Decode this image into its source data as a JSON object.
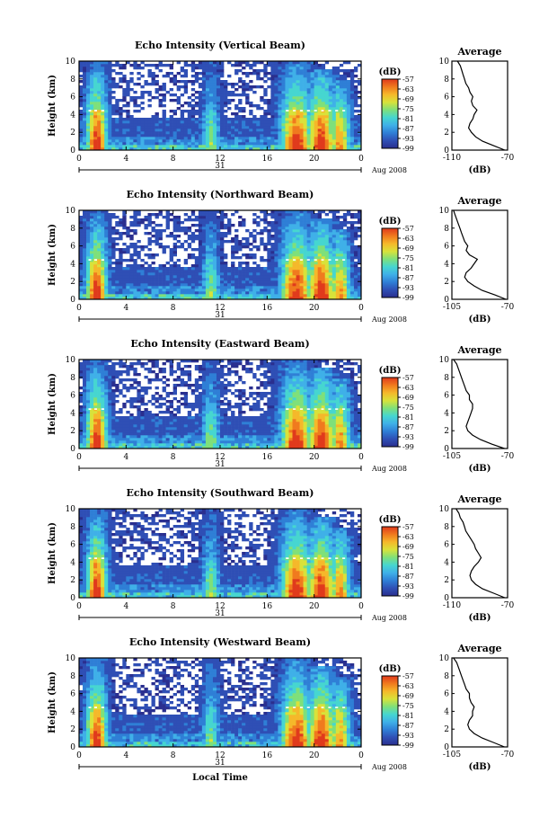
{
  "chart_data": [
    {
      "type": "heatmap",
      "title": "Echo Intensity (Vertical Beam)",
      "ylabel": "Height (km)",
      "xlabel": "",
      "x_ticks": [
        "0",
        "4",
        "8",
        "12",
        "16",
        "20",
        "0"
      ],
      "y_ticks": [
        "0",
        "2",
        "4",
        "6",
        "8",
        "10"
      ],
      "xlim": [
        0,
        24
      ],
      "ylim": [
        0,
        10
      ],
      "day_label": "31",
      "month_label": "Aug 2008",
      "colorbar": {
        "unit": "(dB)",
        "ticks": [
          "-57",
          "-63",
          "-69",
          "-75",
          "-81",
          "-87",
          "-93",
          "-99"
        ],
        "range": [
          -99,
          -57
        ]
      },
      "average": {
        "title": "Average",
        "xlabel": "(dB)",
        "x_ticks": [
          "-110",
          "-70"
        ],
        "xlim": [
          -110,
          -70
        ],
        "y_ticks": [
          "0",
          "2",
          "4",
          "6",
          "8",
          "10"
        ],
        "heights": [
          0,
          0.5,
          1,
          1.5,
          2,
          2.5,
          3,
          3.5,
          4,
          4.5,
          5,
          5.5,
          6,
          6.5,
          7,
          7.5,
          8,
          8.5,
          9,
          9.5,
          10
        ],
        "values": [
          -72,
          -80,
          -88,
          -93,
          -96,
          -98,
          -97,
          -95,
          -94,
          -92,
          -95,
          -96,
          -95,
          -97,
          -98,
          -100,
          -101,
          -102,
          -103,
          -104,
          -106
        ]
      }
    },
    {
      "type": "heatmap",
      "title": "Echo Intensity (Northward Beam)",
      "ylabel": "Height (km)",
      "xlabel": "",
      "x_ticks": [
        "0",
        "4",
        "8",
        "12",
        "16",
        "20",
        "0"
      ],
      "y_ticks": [
        "0",
        "2",
        "4",
        "6",
        "8",
        "10"
      ],
      "xlim": [
        0,
        24
      ],
      "ylim": [
        0,
        10
      ],
      "day_label": "31",
      "month_label": "Aug 2008",
      "colorbar": {
        "unit": "(dB)",
        "ticks": [
          "-57",
          "-63",
          "-69",
          "-75",
          "-81",
          "-87",
          "-93",
          "-99"
        ],
        "range": [
          -99,
          -57
        ]
      },
      "average": {
        "title": "Average",
        "xlabel": "(dB)",
        "x_ticks": [
          "-105",
          "-70"
        ],
        "xlim": [
          -105,
          -70
        ],
        "y_ticks": [
          "0",
          "2",
          "4",
          "6",
          "8",
          "10"
        ],
        "heights": [
          0,
          0.5,
          1,
          1.5,
          2,
          2.5,
          3,
          3.5,
          4,
          4.5,
          5,
          5.5,
          6,
          6.5,
          7,
          7.5,
          8,
          8.5,
          9,
          9.5,
          10
        ],
        "values": [
          -71,
          -78,
          -86,
          -91,
          -95,
          -97,
          -96,
          -93,
          -91,
          -89,
          -94,
          -96,
          -95,
          -97,
          -98,
          -99,
          -100,
          -101,
          -102,
          -103,
          -104
        ]
      }
    },
    {
      "type": "heatmap",
      "title": "Echo Intensity (Eastward Beam)",
      "ylabel": "Height (km)",
      "xlabel": "",
      "x_ticks": [
        "0",
        "4",
        "8",
        "12",
        "16",
        "20",
        "0"
      ],
      "y_ticks": [
        "0",
        "2",
        "4",
        "6",
        "8",
        "10"
      ],
      "xlim": [
        0,
        24
      ],
      "ylim": [
        0,
        10
      ],
      "day_label": "31",
      "month_label": "Aug 2008",
      "colorbar": {
        "unit": "(dB)",
        "ticks": [
          "-57",
          "-63",
          "-69",
          "-75",
          "-81",
          "-87",
          "-93",
          "-99"
        ],
        "range": [
          -99,
          -57
        ]
      },
      "average": {
        "title": "Average",
        "xlabel": "(dB)",
        "x_ticks": [
          "-105",
          "-70"
        ],
        "xlim": [
          -105,
          -70
        ],
        "y_ticks": [
          "0",
          "2",
          "4",
          "6",
          "8",
          "10"
        ],
        "heights": [
          0,
          0.5,
          1,
          1.5,
          2,
          2.5,
          3,
          3.5,
          4,
          4.5,
          5,
          5.5,
          6,
          6.5,
          7,
          7.5,
          8,
          8.5,
          9,
          9.5,
          10
        ],
        "values": [
          -72,
          -80,
          -87,
          -92,
          -95,
          -96,
          -95,
          -94,
          -93,
          -92,
          -92,
          -94,
          -94,
          -96,
          -97,
          -98,
          -99,
          -100,
          -101,
          -102,
          -104
        ]
      }
    },
    {
      "type": "heatmap",
      "title": "Echo Intensity (Southward Beam)",
      "ylabel": "Height (km)",
      "xlabel": "",
      "x_ticks": [
        "0",
        "4",
        "8",
        "12",
        "16",
        "20",
        "0"
      ],
      "y_ticks": [
        "0",
        "2",
        "4",
        "6",
        "8",
        "10"
      ],
      "xlim": [
        0,
        24
      ],
      "ylim": [
        0,
        10
      ],
      "day_label": "31",
      "month_label": "Aug 2008",
      "colorbar": {
        "unit": "(dB)",
        "ticks": [
          "-57",
          "-63",
          "-69",
          "-75",
          "-81",
          "-87",
          "-93",
          "-99"
        ],
        "range": [
          -99,
          -57
        ]
      },
      "average": {
        "title": "Average",
        "xlabel": "(dB)",
        "x_ticks": [
          "-110",
          "-70"
        ],
        "xlim": [
          -110,
          -70
        ],
        "y_ticks": [
          "0",
          "2",
          "4",
          "6",
          "8",
          "10"
        ],
        "heights": [
          0,
          0.5,
          1,
          1.5,
          2,
          2.5,
          3,
          3.5,
          4,
          4.5,
          5,
          5.5,
          6,
          6.5,
          7,
          7.5,
          8,
          8.5,
          9,
          9.5,
          10
        ],
        "values": [
          -72,
          -80,
          -88,
          -93,
          -96,
          -97,
          -96,
          -94,
          -91,
          -89,
          -91,
          -93,
          -94,
          -96,
          -98,
          -100,
          -101,
          -102,
          -104,
          -105,
          -107
        ]
      }
    },
    {
      "type": "heatmap",
      "title": "Echo Intensity (Westward Beam)",
      "ylabel": "Height (km)",
      "xlabel": "Local Time",
      "x_ticks": [
        "0",
        "4",
        "8",
        "12",
        "16",
        "20",
        "0"
      ],
      "y_ticks": [
        "0",
        "2",
        "4",
        "6",
        "8",
        "10"
      ],
      "xlim": [
        0,
        24
      ],
      "ylim": [
        0,
        10
      ],
      "day_label": "31",
      "month_label": "Aug 2008",
      "colorbar": {
        "unit": "(dB)",
        "ticks": [
          "-57",
          "-63",
          "-69",
          "-75",
          "-81",
          "-87",
          "-93",
          "-99"
        ],
        "range": [
          -99,
          -57
        ]
      },
      "average": {
        "title": "Average",
        "xlabel": "(dB)",
        "x_ticks": [
          "-105",
          "-70"
        ],
        "xlim": [
          -105,
          -70
        ],
        "y_ticks": [
          "0",
          "2",
          "4",
          "6",
          "8",
          "10"
        ],
        "heights": [
          0,
          0.5,
          1,
          1.5,
          2,
          2.5,
          3,
          3.5,
          4,
          4.5,
          5,
          5.5,
          6,
          6.5,
          7,
          7.5,
          8,
          8.5,
          9,
          9.5,
          10
        ],
        "values": [
          -72,
          -79,
          -86,
          -91,
          -94,
          -95,
          -94,
          -92,
          -92,
          -91,
          -93,
          -94,
          -94,
          -96,
          -97,
          -98,
          -99,
          -100,
          -101,
          -102,
          -104
        ]
      }
    }
  ],
  "colors": {
    "colormap": [
      "#2a2f8f",
      "#2f4fb5",
      "#2f7fd6",
      "#3fb0e8",
      "#46d6d0",
      "#7fe07a",
      "#d8e23a",
      "#f5b82a",
      "#f07a1e",
      "#e03a1c"
    ]
  }
}
